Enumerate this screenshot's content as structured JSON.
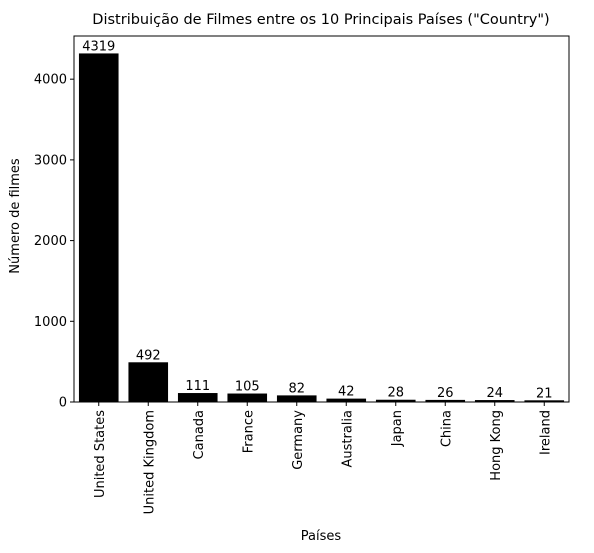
{
  "chart_data": {
    "type": "bar",
    "title": "Distribuição de Filmes entre os 10 Principais Países (\"Country\")",
    "xlabel": "Países",
    "ylabel": "Número de filmes",
    "categories": [
      "United States",
      "United Kingdom",
      "Canada",
      "France",
      "Germany",
      "Australia",
      "Japan",
      "China",
      "Hong Kong",
      "Ireland"
    ],
    "values": [
      4319,
      492,
      111,
      105,
      82,
      42,
      28,
      26,
      24,
      21
    ],
    "data_labels": [
      "4319",
      "492",
      "111",
      "105",
      "82",
      "42",
      "28",
      "26",
      "24",
      "21"
    ],
    "ylim": [
      0,
      4535
    ],
    "yticks": [
      0,
      1000,
      2000,
      3000,
      4000
    ],
    "ytick_labels": [
      "0",
      "1000",
      "2000",
      "3000",
      "4000"
    ],
    "bar_color": "#000000",
    "grid": false,
    "legend": "none"
  }
}
